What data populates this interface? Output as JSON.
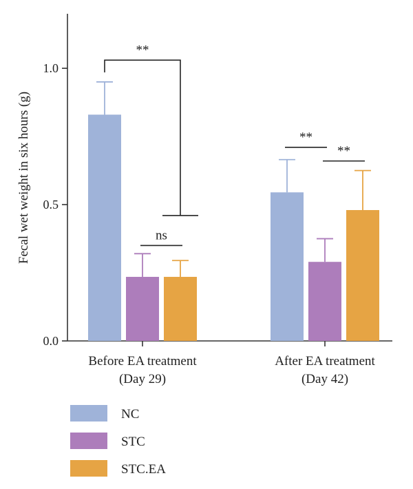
{
  "chart_data": {
    "type": "bar",
    "title": "",
    "xlabel": "",
    "ylabel": "Fecal wet weight in six hours (g)",
    "ylim": [
      0,
      1.2
    ],
    "yticks": [
      0.0,
      0.5,
      1.0
    ],
    "ytick_labels": [
      "0.0",
      "0.5",
      "1.0"
    ],
    "grid": false,
    "legend_position": "bottom-left",
    "categories": [
      {
        "line1": "Before EA treatment",
        "line2": "(Day 29)"
      },
      {
        "line1": "After EA treatment",
        "line2": "(Day 42)"
      }
    ],
    "series": [
      {
        "name": "NC",
        "color": "#9fb3d9",
        "values": [
          0.83,
          0.545
        ],
        "errors": [
          0.12,
          0.12
        ]
      },
      {
        "name": "STC",
        "color": "#ad7dbb",
        "values": [
          0.235,
          0.29
        ],
        "errors": [
          0.085,
          0.085
        ]
      },
      {
        "name": "STC.EA",
        "color": "#e6a444",
        "values": [
          0.235,
          0.48
        ],
        "errors": [
          0.06,
          0.145
        ]
      }
    ],
    "significance": [
      {
        "category": 0,
        "from": 0,
        "to": 2,
        "label": "**",
        "y": 1.03,
        "drop_from": 0.985,
        "drop_to": 0.46
      },
      {
        "category": 0,
        "from": 1,
        "to": 2,
        "label": "ns",
        "y": 0.35
      },
      {
        "category": 1,
        "from": 0,
        "to": 1,
        "label": "**",
        "y": 0.71
      },
      {
        "category": 1,
        "from": 1,
        "to": 2,
        "label": "**",
        "y": 0.66
      }
    ]
  }
}
